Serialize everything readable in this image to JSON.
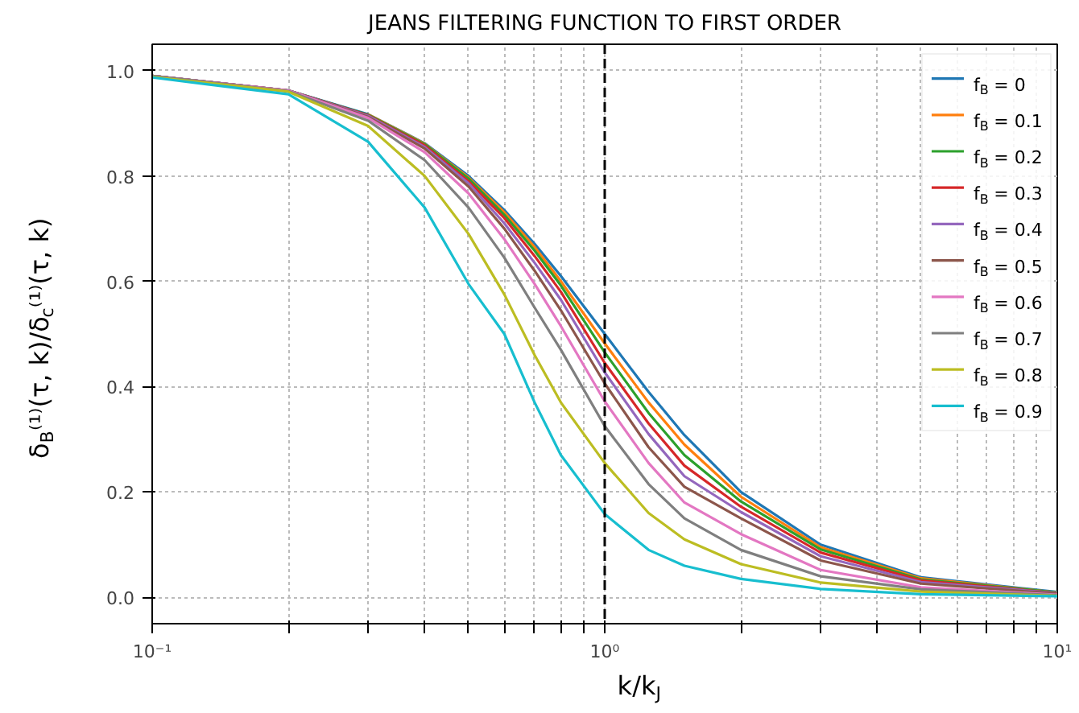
{
  "chart_data": {
    "type": "line",
    "title": "JEANS FILTERING FUNCTION TO FIRST ORDER",
    "xlabel": "k/k$_{J}$",
    "ylabel": "δ$_{B}$⁽¹⁾(τ, k)/δ$_{c}$⁽¹⁾(τ, k)",
    "log": "x",
    "grid": true,
    "legend": "top right",
    "xlim": [
      0.1,
      10
    ],
    "ylim": [
      -0.05,
      1.05
    ],
    "xticks": [
      {
        "value": 0.1,
        "label": "10⁻¹"
      },
      {
        "value": 0.2,
        "label": null
      },
      {
        "value": 0.3,
        "label": null
      },
      {
        "value": 0.4,
        "label": null
      },
      {
        "value": 0.5,
        "label": null
      },
      {
        "value": 0.6,
        "label": null
      },
      {
        "value": 0.7,
        "label": null
      },
      {
        "value": 0.8,
        "label": null
      },
      {
        "value": 0.9,
        "label": null
      },
      {
        "value": 1,
        "label": "10⁰"
      },
      {
        "value": 2,
        "label": null
      },
      {
        "value": 3,
        "label": null
      },
      {
        "value": 4,
        "label": null
      },
      {
        "value": 5,
        "label": null
      },
      {
        "value": 6,
        "label": null
      },
      {
        "value": 7,
        "label": null
      },
      {
        "value": 8,
        "label": null
      },
      {
        "value": 9,
        "label": null
      },
      {
        "value": 10,
        "label": "10¹"
      }
    ],
    "yticks": [
      {
        "value": 0,
        "label": "0.0"
      },
      {
        "value": 0.2,
        "label": "0.2"
      },
      {
        "value": 0.4,
        "label": "0.4"
      },
      {
        "value": 0.6,
        "label": "0.6"
      },
      {
        "value": 0.8,
        "label": "0.8"
      },
      {
        "value": 1,
        "label": "1.0"
      }
    ],
    "ref_lines": [
      {
        "axis": "x",
        "value": 1,
        "color": "#000000",
        "line_style": "dashed"
      }
    ],
    "x": [
      0.1,
      0.2,
      0.3,
      0.4,
      0.5,
      0.6,
      0.7,
      0.8,
      1,
      1.25,
      1.5,
      2,
      3,
      5,
      10
    ],
    "series": [
      {
        "name": "f$_{B}$ = 0",
        "color": "#1f77b4",
        "values": [
          0.99,
          0.962,
          0.917,
          0.862,
          0.8,
          0.735,
          0.671,
          0.61,
          0.5,
          0.39,
          0.308,
          0.2,
          0.1,
          0.038,
          0.01
        ]
      },
      {
        "name": "f$_{B}$ = 0.1",
        "color": "#ff7f0e",
        "values": [
          null,
          null,
          0.917,
          0.861,
          0.797,
          0.731,
          0.665,
          0.6,
          0.482,
          0.37,
          0.29,
          0.191,
          0.095,
          0.036,
          0.009
        ]
      },
      {
        "name": "f$_{B}$ = 0.2",
        "color": "#2ca02c",
        "values": [
          0.99,
          0.962,
          0.916,
          0.86,
          0.795,
          0.726,
          0.658,
          0.592,
          0.465,
          0.35,
          0.27,
          0.182,
          0.091,
          0.034,
          0.009
        ]
      },
      {
        "name": "f$_{B}$ = 0.3",
        "color": "#d62728",
        "values": [
          0.99,
          0.962,
          0.915,
          0.858,
          0.79,
          0.72,
          0.648,
          0.58,
          0.445,
          0.33,
          0.25,
          0.172,
          0.085,
          0.032,
          0.008
        ]
      },
      {
        "name": "f$_{B}$ = 0.4",
        "color": "#9467bd",
        "values": [
          0.99,
          0.962,
          0.914,
          0.855,
          0.786,
          0.71,
          0.635,
          0.565,
          0.427,
          0.31,
          0.23,
          0.162,
          0.078,
          0.029,
          0.008
        ]
      },
      {
        "name": "f$_{B}$ = 0.5",
        "color": "#8c564b",
        "values": [
          0.99,
          0.962,
          0.912,
          0.852,
          0.78,
          0.7,
          0.62,
          0.545,
          0.406,
          0.285,
          0.21,
          0.15,
          0.07,
          0.026,
          0.007
        ]
      },
      {
        "name": "f$_{B}$ = 0.6",
        "color": "#e377c2",
        "values": [
          0.99,
          0.962,
          0.91,
          0.845,
          0.767,
          0.68,
          0.595,
          0.515,
          0.372,
          0.255,
          0.18,
          0.12,
          0.052,
          0.019,
          0.005
        ]
      },
      {
        "name": "f$_{B}$ = 0.7",
        "color": "#7f7f7f",
        "values": [
          0.99,
          0.961,
          0.905,
          0.83,
          0.74,
          0.645,
          0.55,
          0.47,
          0.325,
          0.215,
          0.15,
          0.09,
          0.04,
          0.015,
          0.004
        ]
      },
      {
        "name": "f$_{B}$ = 0.8",
        "color": "#bcbd22",
        "values": [
          0.988,
          0.96,
          0.895,
          0.8,
          0.69,
          0.575,
          0.46,
          0.37,
          0.255,
          0.16,
          0.11,
          0.063,
          0.028,
          0.011,
          0.003
        ]
      },
      {
        "name": "f$_{B}$ = 0.9",
        "color": "#17becf",
        "values": [
          0.987,
          0.955,
          0.865,
          0.74,
          0.595,
          0.5,
          0.37,
          0.27,
          0.158,
          0.09,
          0.06,
          0.035,
          0.016,
          0.006,
          0.002
        ]
      }
    ]
  }
}
